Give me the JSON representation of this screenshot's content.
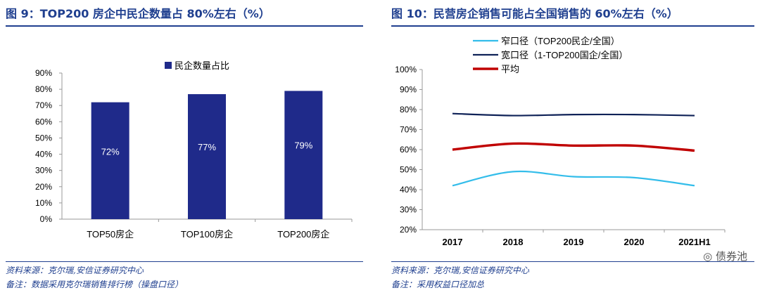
{
  "colors": {
    "header_blue": "#1f3f8f",
    "bar_blue": "#1f2a8a",
    "light_blue": "#33bdea",
    "navy": "#0f2257",
    "red": "#c00000"
  },
  "left": {
    "title": "图 9：TOP200 房企中民企数量占 80%左右（%）",
    "source": "资料来源：克尔瑞,安信证券研究中心",
    "note": "备注：数据采用克尔瑞销售排行榜（操盘口径）"
  },
  "right": {
    "title": "图 10：民营房企销售可能占全国销售的 60%左右（%）",
    "source": "资料来源：克尔瑞,安信证券研究中心",
    "note": "备注：采用权益口径加总"
  },
  "watermark": "债券池",
  "chart_data": [
    {
      "type": "bar",
      "title": "图 9：TOP200 房企中民企数量占 80%左右（%）",
      "categories": [
        "TOP50房企",
        "TOP100房企",
        "TOP200房企"
      ],
      "values": [
        72,
        77,
        79
      ],
      "data_labels": [
        "72%",
        "77%",
        "79%"
      ],
      "legend": [
        "民企数量占比"
      ],
      "legend_position": "top",
      "ylim": [
        0,
        90
      ],
      "yticks": [
        "0%",
        "10%",
        "20%",
        "30%",
        "40%",
        "50%",
        "60%",
        "70%",
        "80%",
        "90%"
      ],
      "xlabel": "",
      "ylabel": ""
    },
    {
      "type": "line",
      "title": "图 10：民营房企销售可能占全国销售的 60%左右（%）",
      "categories": [
        "2017",
        "2018",
        "2019",
        "2020",
        "2021H1"
      ],
      "series": [
        {
          "name": "窄口径（TOP200民企/全国）",
          "values": [
            42,
            49,
            46.5,
            46,
            42
          ]
        },
        {
          "name": "宽口径（1-TOP200国企/全国）",
          "values": [
            78,
            77,
            77.5,
            77.5,
            77
          ]
        },
        {
          "name": "平均",
          "values": [
            60,
            63,
            62,
            62,
            59.5
          ]
        }
      ],
      "legend_position": "top-left",
      "ylim": [
        20,
        100
      ],
      "yticks": [
        "20%",
        "30%",
        "40%",
        "50%",
        "60%",
        "70%",
        "80%",
        "90%",
        "100%"
      ],
      "xlabel": "",
      "ylabel": ""
    }
  ]
}
